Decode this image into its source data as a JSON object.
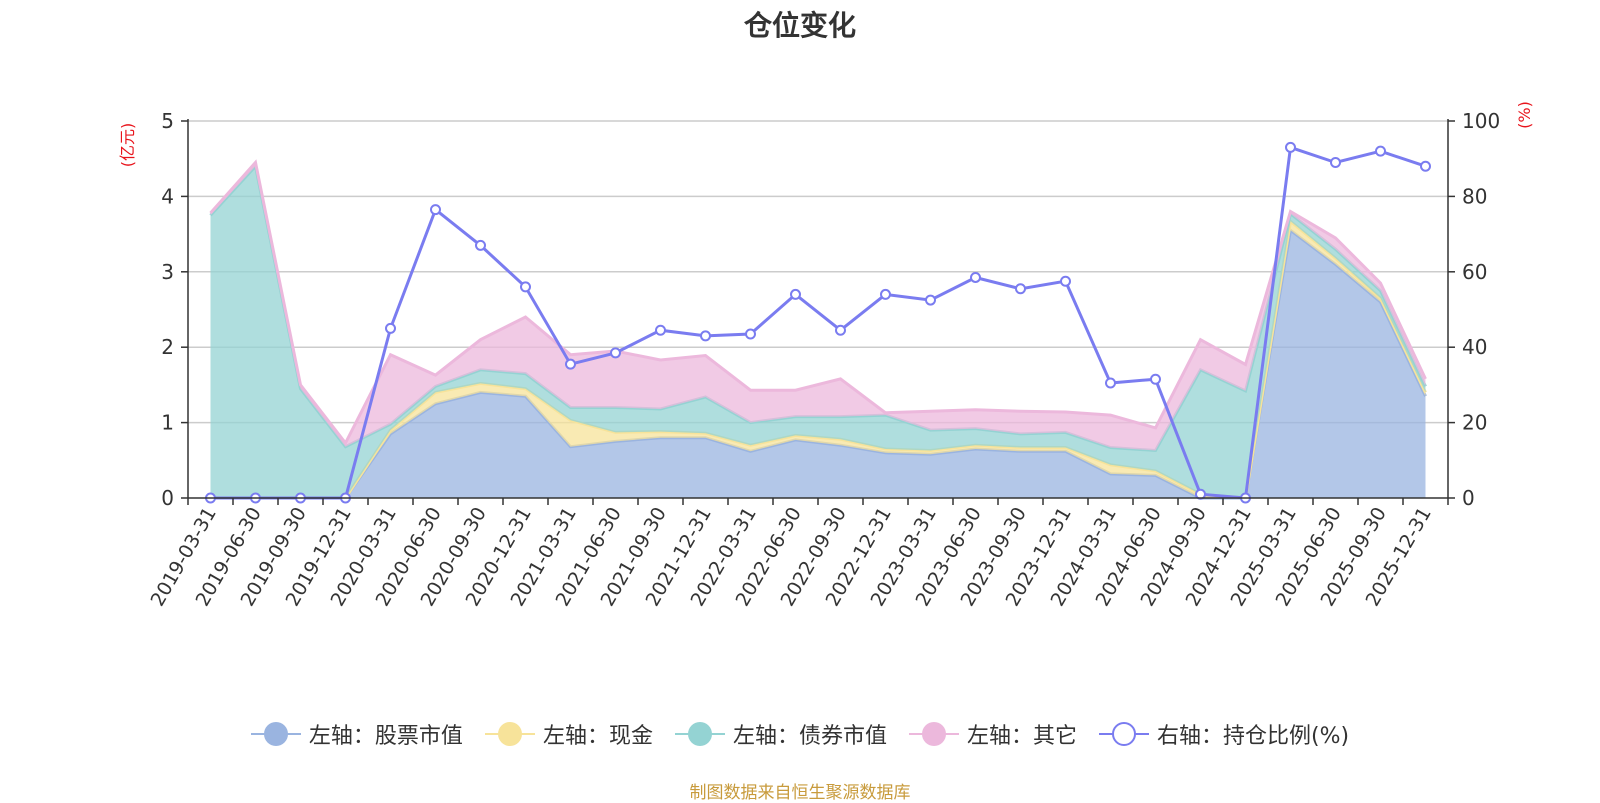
{
  "chart_data": {
    "type": "area",
    "title": "仓位变化",
    "y_left_unit": "(亿元)",
    "y_right_unit": "(%)",
    "ylim_left": [
      0,
      5
    ],
    "ylim_right": [
      0,
      100
    ],
    "y_left_ticks": [
      "0",
      "1",
      "2",
      "3",
      "4",
      "5"
    ],
    "y_right_ticks": [
      "0",
      "20",
      "40",
      "60",
      "80",
      "100"
    ],
    "grid": true,
    "legend_position": "bottom",
    "categories": [
      "2019-03-31",
      "2019-06-30",
      "2019-09-30",
      "2019-12-31",
      "2020-03-31",
      "2020-06-30",
      "2020-09-30",
      "2020-12-31",
      "2021-03-31",
      "2021-06-30",
      "2021-09-30",
      "2021-12-31",
      "2022-03-31",
      "2022-06-30",
      "2022-09-30",
      "2022-12-31",
      "2023-03-31",
      "2023-06-30",
      "2023-09-30",
      "2023-12-31",
      "2024-03-31",
      "2024-06-30",
      "2024-09-30",
      "2024-12-31",
      "2025-03-31",
      "2025-06-30",
      "2025-09-30",
      "2025-12-31"
    ],
    "series": [
      {
        "name": "左轴：股票市值",
        "axis": "left",
        "stacked": true,
        "color": "#9ab4e0",
        "values": [
          0,
          0,
          0,
          0,
          0.85,
          1.25,
          1.4,
          1.35,
          0.68,
          0.75,
          0.8,
          0.8,
          0.62,
          0.77,
          0.7,
          0.6,
          0.58,
          0.65,
          0.62,
          0.62,
          0.32,
          0.3,
          0,
          0,
          3.55,
          3.1,
          2.6,
          1.35
        ]
      },
      {
        "name": "左轴：现金",
        "axis": "left",
        "stacked": true,
        "color": "#f7e39a",
        "values": [
          0,
          0,
          0,
          0,
          0.05,
          0.15,
          0.12,
          0.1,
          0.35,
          0.12,
          0.08,
          0.06,
          0.08,
          0.06,
          0.08,
          0.05,
          0.05,
          0.05,
          0.05,
          0.05,
          0.12,
          0.06,
          0.05,
          0,
          0.12,
          0.08,
          0.05,
          0.05
        ]
      },
      {
        "name": "左轴：债券市值",
        "axis": "left",
        "stacked": true,
        "color": "#94d3d3",
        "values": [
          3.75,
          4.4,
          1.45,
          0.68,
          0.08,
          0.08,
          0.18,
          0.2,
          0.17,
          0.33,
          0.3,
          0.48,
          0.3,
          0.25,
          0.3,
          0.45,
          0.27,
          0.22,
          0.18,
          0.2,
          0.23,
          0.27,
          1.65,
          1.42,
          0.1,
          0.12,
          0.1,
          0.08
        ]
      },
      {
        "name": "左轴：其它",
        "axis": "left",
        "stacked": true,
        "color": "#ecb8dc",
        "values": [
          0.03,
          0.05,
          0.05,
          0.05,
          0.92,
          0.15,
          0.4,
          0.75,
          0.7,
          0.75,
          0.65,
          0.55,
          0.43,
          0.35,
          0.5,
          0.03,
          0.25,
          0.25,
          0.3,
          0.27,
          0.43,
          0.3,
          0.4,
          0.35,
          0.03,
          0.15,
          0.1,
          0.1
        ]
      },
      {
        "name": "右轴：持仓比例(%)",
        "axis": "right",
        "type": "line",
        "color": "#7a7cf0",
        "values": [
          0,
          0,
          0,
          0,
          45,
          76.5,
          67,
          56,
          35.5,
          38.5,
          44.5,
          43,
          43.5,
          54,
          44.5,
          54,
          52.5,
          58.5,
          55.5,
          57.5,
          30.5,
          31.5,
          1,
          0,
          93,
          89,
          92,
          88
        ]
      }
    ]
  },
  "source_note": "制图数据来自恒生聚源数据库"
}
